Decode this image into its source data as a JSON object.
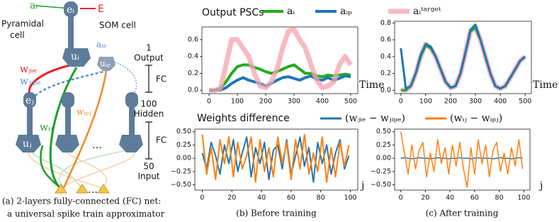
{
  "chart_data": [
    {
      "type": "line",
      "title": "Output PSCs",
      "xlabel": "Time",
      "x": [
        0,
        20,
        40,
        60,
        80,
        100,
        120,
        140,
        160,
        180,
        200,
        220,
        240,
        260,
        280,
        300,
        320,
        340,
        360,
        380,
        400,
        420,
        440,
        460,
        480,
        500
      ],
      "series": [
        {
          "name": "aᵢ",
          "color": "#22aa22",
          "values": [
            0,
            0,
            0.02,
            0.1,
            0.2,
            0.28,
            0.3,
            0.3,
            0.27,
            0.25,
            0.22,
            0.2,
            0.22,
            0.25,
            0.28,
            0.3,
            0.25,
            0.2,
            0.2,
            0.17,
            0.16,
            0.18,
            0.17,
            0.18,
            0.19,
            0.18
          ]
        },
        {
          "name": "aᵢₚ",
          "color": "#1f77b4",
          "values": [
            0,
            0,
            0,
            0.03,
            0.08,
            0.12,
            0.15,
            0.12,
            0.1,
            0.08,
            0.05,
            0.08,
            0.12,
            0.15,
            0.16,
            0.14,
            0.12,
            0.15,
            0.17,
            0.13,
            0.12,
            0.15,
            0.12,
            0.14,
            0.17,
            0.16
          ]
        },
        {
          "name": "aᵢᵗᵃʳᵍᵉᵗ",
          "color": "#f5a3ad",
          "values": [
            0,
            0,
            0.02,
            0.3,
            0.6,
            0.6,
            0.5,
            0.4,
            0.2,
            0.05,
            0.03,
            0.1,
            0.25,
            0.5,
            0.7,
            0.72,
            0.6,
            0.5,
            0.3,
            0.12,
            0.03,
            0.05,
            0.1,
            0.3,
            0.4,
            0.3
          ]
        }
      ],
      "xlim": [
        -25,
        525
      ],
      "ylim": [
        -0.04,
        0.75
      ],
      "xticks": [
        0,
        100,
        200,
        300,
        400,
        500
      ],
      "yticks": [
        {
          "value": 0,
          "label": "0.0"
        },
        {
          "value": 0.2,
          "label": "0.2"
        },
        {
          "value": 0.4,
          "label": "0.4"
        },
        {
          "value": 0.6,
          "label": "0.6"
        }
      ]
    },
    {
      "type": "line",
      "xlabel": "Time",
      "x": [
        0,
        20,
        40,
        60,
        80,
        100,
        120,
        140,
        160,
        180,
        200,
        220,
        240,
        260,
        280,
        300,
        320,
        340,
        360,
        380,
        400,
        420,
        440,
        460,
        480,
        500
      ],
      "series": [
        {
          "color": "#f5a3ad",
          "values": [
            0,
            0,
            0.05,
            0.2,
            0.4,
            0.55,
            0.5,
            0.4,
            0.25,
            0.1,
            0.03,
            0.05,
            0.2,
            0.45,
            0.7,
            0.75,
            0.6,
            0.4,
            0.2,
            0.05,
            0.02,
            0.05,
            0.15,
            0.25,
            0.35,
            0.4
          ]
        },
        {
          "color": "#22aa22",
          "values": [
            0,
            0,
            0.05,
            0.2,
            0.4,
            0.53,
            0.5,
            0.4,
            0.25,
            0.1,
            0.03,
            0.05,
            0.2,
            0.45,
            0.7,
            0.74,
            0.6,
            0.4,
            0.2,
            0.05,
            0.02,
            0.05,
            0.15,
            0.25,
            0.35,
            0.4
          ]
        },
        {
          "color": "#1f77b4",
          "values": [
            0.5,
            0.02,
            0.05,
            0.2,
            0.42,
            0.55,
            0.52,
            0.4,
            0.25,
            0.1,
            0.03,
            0.05,
            0.2,
            0.45,
            0.72,
            0.78,
            0.6,
            0.4,
            0.2,
            0.05,
            0.02,
            0.05,
            0.15,
            0.25,
            0.35,
            0.4
          ]
        }
      ],
      "xlim": [
        -25,
        525
      ],
      "ylim": [
        -0.04,
        0.82
      ],
      "xticks": [
        0,
        100,
        200,
        300,
        400,
        500
      ],
      "yticks": [
        {
          "value": 0,
          "label": "0.0"
        },
        {
          "value": 0.2,
          "label": "0.2"
        },
        {
          "value": 0.4,
          "label": "0.4"
        },
        {
          "value": 0.6,
          "label": "0.6"
        },
        {
          "value": 0.8,
          "label": "0.8"
        }
      ]
    },
    {
      "type": "line",
      "title": "Weights difference",
      "xlabel": "j",
      "x": [
        0,
        3,
        6,
        9,
        12,
        15,
        18,
        21,
        24,
        27,
        30,
        33,
        36,
        39,
        42,
        45,
        48,
        51,
        54,
        57,
        60,
        63,
        66,
        69,
        72,
        75,
        78,
        81,
        84,
        87,
        90,
        93,
        96,
        99
      ],
      "series": [
        {
          "name": "(wⱼᵢₑ − wⱼᵢₚₑ)",
          "color": "#1f77b4",
          "values": [
            0.1,
            -0.2,
            0.3,
            0.05,
            -0.3,
            0.25,
            -0.1,
            0.35,
            -0.25,
            0.1,
            0.4,
            -0.35,
            0.2,
            -0.1,
            0.3,
            -0.4,
            0.15,
            0.25,
            -0.2,
            0.35,
            -0.3,
            0.05,
            0.4,
            -0.15,
            0.2,
            -0.45,
            0.3,
            -0.1,
            0.25,
            -0.3,
            0.1,
            0.35,
            -0.2,
            0.05
          ]
        },
        {
          "name": "(wᵢⱼ − wᵢₚⱼ)",
          "color": "#ff7f0e",
          "values": [
            0.45,
            -0.3,
            0.2,
            -0.4,
            0.35,
            -0.1,
            0.4,
            -0.35,
            0.3,
            -0.2,
            0.05,
            0.4,
            -0.45,
            0.35,
            -0.25,
            0.2,
            -0.35,
            0.4,
            -0.1,
            0.3,
            -0.4,
            0.35,
            -0.2,
            0.45,
            -0.3,
            0.1,
            -0.25,
            0.4,
            -0.45,
            0.2,
            -0.35,
            0.3,
            -0.15,
            0.25
          ]
        }
      ],
      "xlim": [
        -5,
        105
      ],
      "ylim": [
        -0.6,
        0.55
      ],
      "xticks": [
        0,
        20,
        40,
        60,
        80,
        100
      ],
      "yticks": [
        {
          "value": -0.5,
          "label": "−0.50"
        },
        {
          "value": -0.25,
          "label": "−0.25"
        },
        {
          "value": 0,
          "label": "0.00"
        },
        {
          "value": 0.25,
          "label": "0.25"
        },
        {
          "value": 0.5,
          "label": "0.50"
        }
      ]
    },
    {
      "type": "line",
      "xlabel": "j",
      "x": [
        0,
        3,
        6,
        9,
        12,
        15,
        18,
        21,
        24,
        27,
        30,
        33,
        36,
        39,
        42,
        45,
        48,
        51,
        54,
        57,
        60,
        63,
        66,
        69,
        72,
        75,
        78,
        81,
        84,
        87,
        90,
        93,
        96,
        99
      ],
      "series": [
        {
          "color": "#1f77b4",
          "values": [
            0,
            0.01,
            0,
            -0.01,
            0,
            0.01,
            0,
            0,
            -0.01,
            0,
            0.01,
            0,
            0,
            -0.01,
            0,
            0,
            0.01,
            0,
            0,
            -0.01,
            0,
            0.01,
            0,
            0,
            0,
            -0.01,
            0,
            0.01,
            0,
            0,
            -0.01,
            0,
            0.01,
            0
          ]
        },
        {
          "color": "#ff7f0e",
          "values": [
            0.5,
            0.1,
            -0.3,
            0.25,
            -0.2,
            0.15,
            0.3,
            -0.35,
            0.1,
            -0.25,
            0.35,
            -0.1,
            0.2,
            -0.3,
            0.25,
            -0.15,
            0.3,
            -0.2,
            -0.55,
            0.2,
            -0.3,
            0.35,
            -0.1,
            0.25,
            -0.35,
            0.15,
            0.3,
            -0.25,
            0.1,
            -0.3,
            0.2,
            -0.15,
            0.35,
            -0.2
          ]
        }
      ],
      "xlim": [
        -5,
        105
      ],
      "ylim": [
        -0.6,
        0.55
      ],
      "xticks": [
        0,
        20,
        40,
        60,
        80,
        100
      ],
      "yticks": [
        {
          "value": -0.5,
          "label": "−0.50"
        },
        {
          "value": -0.25,
          "label": "−0.25"
        },
        {
          "value": 0,
          "label": "0.00"
        },
        {
          "value": 0.25,
          "label": "0.25"
        },
        {
          "value": 0.5,
          "label": "0.50"
        }
      ]
    }
  ],
  "captions": [
    "(a)  2-layers fully-connected (FC) net:",
    "a universal spike train approximator",
    "(b) Before training",
    "(c) After training"
  ],
  "diagram": {
    "labels": [
      "aᵢ",
      "eᵢ",
      "E",
      "Pyramidal",
      "cell",
      "SOM cell",
      "uᵢ",
      "aᵢₚ",
      "uᵢₚ",
      "wⱼᵢₑ",
      "wⱼᵢₚₑ",
      "eⱼ",
      "wᵢₚⱼ",
      "wᵢⱼ",
      "uⱼ",
      "…",
      "1",
      "Output",
      "FC",
      "100",
      "Hidden",
      "FC",
      "50",
      "Input",
      "…"
    ]
  }
}
